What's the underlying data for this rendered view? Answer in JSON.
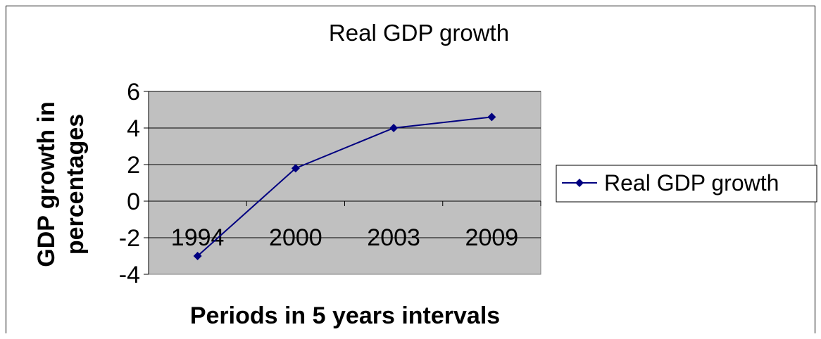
{
  "chart_data": {
    "type": "line",
    "title": "Real GDP growth",
    "xlabel": "Periods in 5 years intervals",
    "ylabel_lines": [
      "GDP growth in",
      "percentages"
    ],
    "categories": [
      "1994",
      "2000",
      "2003",
      "2009"
    ],
    "series": [
      {
        "name": "Real GDP growth",
        "values": [
          -3.0,
          1.8,
          4.0,
          4.6
        ],
        "color": "#000080"
      }
    ],
    "ylim": [
      -4,
      6
    ],
    "yticks": [
      6,
      4,
      2,
      0,
      -2,
      -4
    ],
    "yticks_labels": [
      "6",
      "4",
      "2",
      "0",
      "-2",
      "-4"
    ],
    "grid": true,
    "plot_background": "#c0c0c0",
    "legend_position": "right"
  }
}
